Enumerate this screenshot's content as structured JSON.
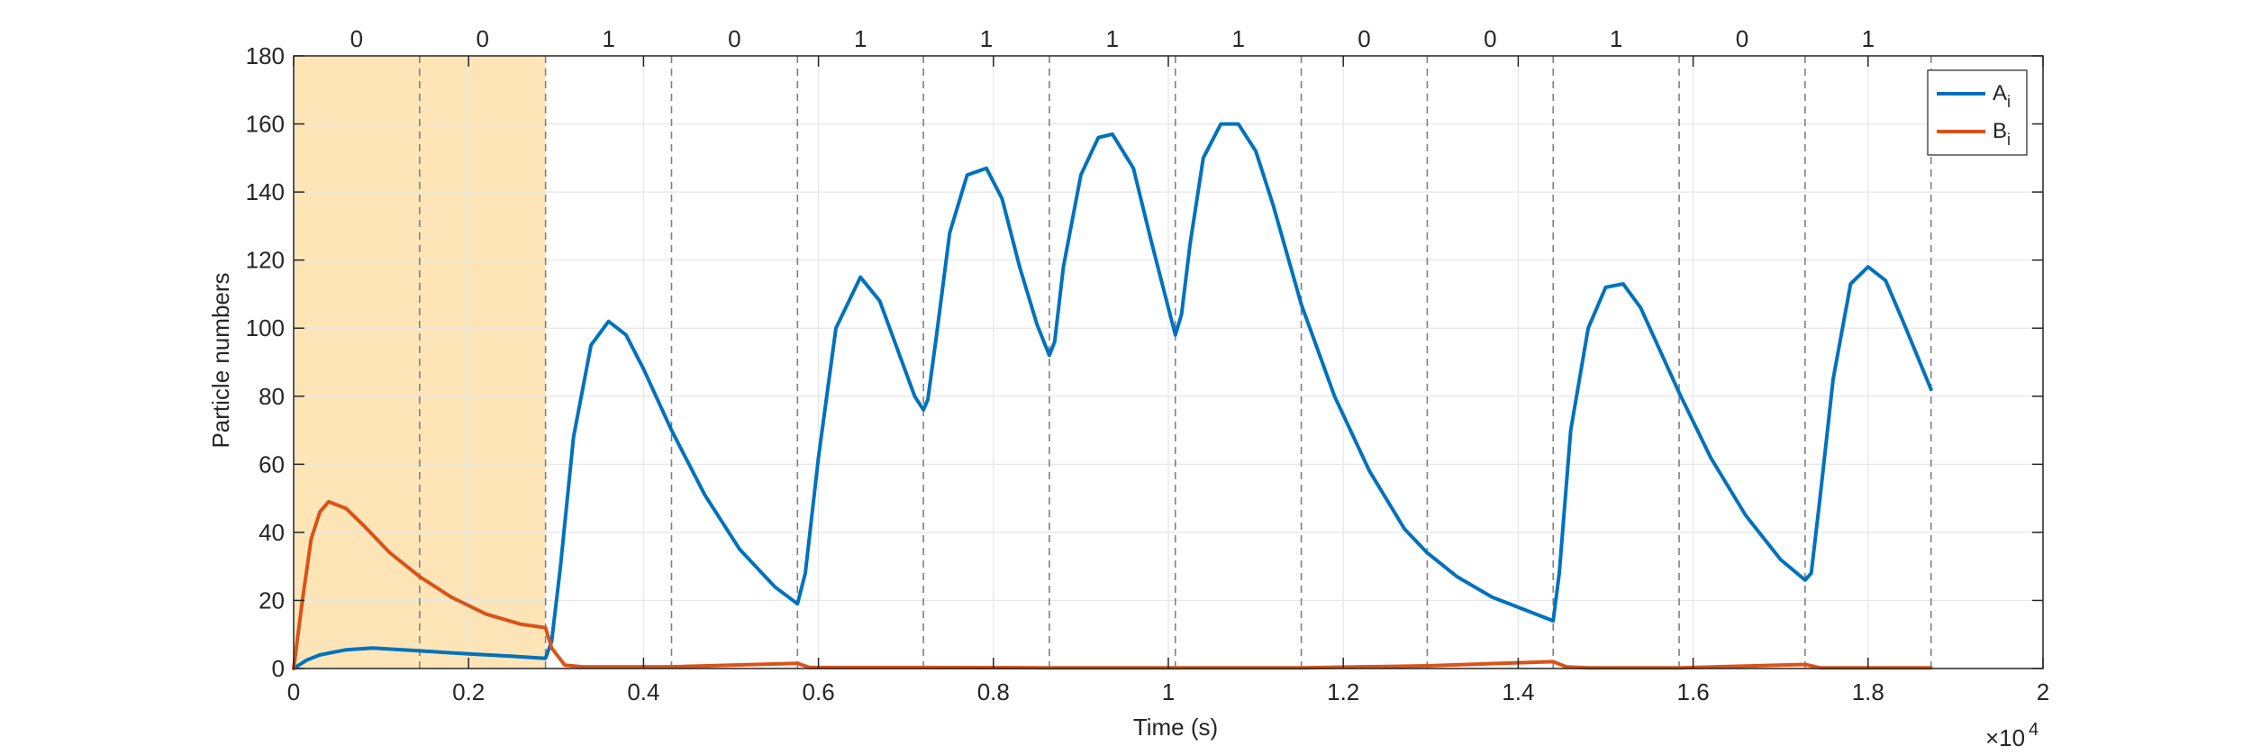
{
  "chart_data": {
    "type": "line",
    "title": "",
    "xlabel": "Time (s)",
    "ylabel": "Particle numbers",
    "xlim": [
      0,
      20000
    ],
    "ylim": [
      0,
      180
    ],
    "x_ticks": [
      0,
      2000,
      4000,
      6000,
      8000,
      10000,
      12000,
      14000,
      16000,
      18000,
      20000
    ],
    "x_tick_labels": [
      "0",
      "0.2",
      "0.4",
      "0.6",
      "0.8",
      "1",
      "1.2",
      "1.4",
      "1.6",
      "1.8",
      "2"
    ],
    "x_exponent_label": "×10",
    "x_exponent_power": "4",
    "y_ticks": [
      0,
      20,
      40,
      60,
      80,
      100,
      120,
      140,
      160,
      180
    ],
    "y_tick_labels": [
      "0",
      "20",
      "40",
      "60",
      "80",
      "100",
      "120",
      "140",
      "160",
      "180"
    ],
    "grid": true,
    "legend_position": "top-right",
    "shaded_region": {
      "x": [
        0,
        2880
      ],
      "color": "#fde5b7"
    },
    "interval_boundaries": [
      1440,
      2880,
      4320,
      5760,
      7200,
      8640,
      10080,
      11520,
      12960,
      14400,
      15840,
      17280,
      18720
    ],
    "interval_labels": [
      {
        "x": 720,
        "label": "0"
      },
      {
        "x": 2160,
        "label": "0"
      },
      {
        "x": 3600,
        "label": "1"
      },
      {
        "x": 5040,
        "label": "0"
      },
      {
        "x": 6480,
        "label": "1"
      },
      {
        "x": 7920,
        "label": "1"
      },
      {
        "x": 9360,
        "label": "1"
      },
      {
        "x": 10800,
        "label": "1"
      },
      {
        "x": 12240,
        "label": "0"
      },
      {
        "x": 13680,
        "label": "0"
      },
      {
        "x": 15120,
        "label": "1"
      },
      {
        "x": 16560,
        "label": "0"
      },
      {
        "x": 18000,
        "label": "1"
      }
    ],
    "series": [
      {
        "name": "A",
        "subscript": "i",
        "color": "#0072bd",
        "x": [
          0,
          150,
          300,
          600,
          900,
          1440,
          2000,
          2500,
          2880,
          2950,
          3050,
          3200,
          3400,
          3600,
          3800,
          4000,
          4320,
          4700,
          5100,
          5500,
          5760,
          5850,
          6000,
          6200,
          6480,
          6700,
          6900,
          7100,
          7200,
          7250,
          7350,
          7500,
          7700,
          7920,
          8100,
          8300,
          8500,
          8640,
          8700,
          8800,
          9000,
          9200,
          9360,
          9600,
          9800,
          10000,
          10080,
          10150,
          10250,
          10400,
          10600,
          10800,
          11000,
          11200,
          11520,
          11900,
          12300,
          12700,
          12960,
          13300,
          13700,
          14100,
          14400,
          14470,
          14600,
          14800,
          15000,
          15200,
          15400,
          15840,
          16200,
          16600,
          17000,
          17280,
          17350,
          17450,
          17600,
          17800,
          18000,
          18200,
          18400,
          18720
        ],
        "y": [
          0,
          2.5,
          4,
          5.5,
          6,
          5.2,
          4.3,
          3.6,
          3,
          8,
          30,
          68,
          95,
          102,
          98,
          88,
          70,
          51,
          35,
          24,
          19,
          28,
          62,
          100,
          115,
          108,
          94,
          80,
          76,
          79,
          98,
          128,
          145,
          147,
          138,
          118,
          101,
          92,
          96,
          118,
          145,
          156,
          157,
          147,
          126,
          106,
          98,
          104,
          125,
          150,
          160,
          160,
          152,
          136,
          107,
          80,
          58,
          41,
          34,
          27,
          21,
          17,
          14,
          28,
          70,
          100,
          112,
          113,
          106,
          81,
          62,
          45,
          32,
          26,
          28,
          50,
          85,
          113,
          118,
          114,
          102,
          82
        ]
      },
      {
        "name": "B",
        "subscript": "i",
        "color": "#d95319",
        "x": [
          0,
          100,
          200,
          300,
          400,
          600,
          800,
          1100,
          1440,
          1800,
          2200,
          2600,
          2880,
          2950,
          3100,
          3300,
          4320,
          5760,
          5900,
          6200,
          7200,
          8640,
          10080,
          11520,
          12960,
          14400,
          14550,
          14800,
          15840,
          17280,
          17450,
          17700,
          18720
        ],
        "y": [
          0,
          20,
          38,
          46,
          49,
          47,
          42,
          34,
          27,
          21,
          16,
          13,
          12,
          6,
          1,
          0.5,
          0.5,
          1.5,
          0.3,
          0.3,
          0.3,
          0.2,
          0.2,
          0.2,
          0.8,
          2,
          0.5,
          0.2,
          0.2,
          1.2,
          0.2,
          0.2,
          0.2
        ]
      }
    ]
  }
}
